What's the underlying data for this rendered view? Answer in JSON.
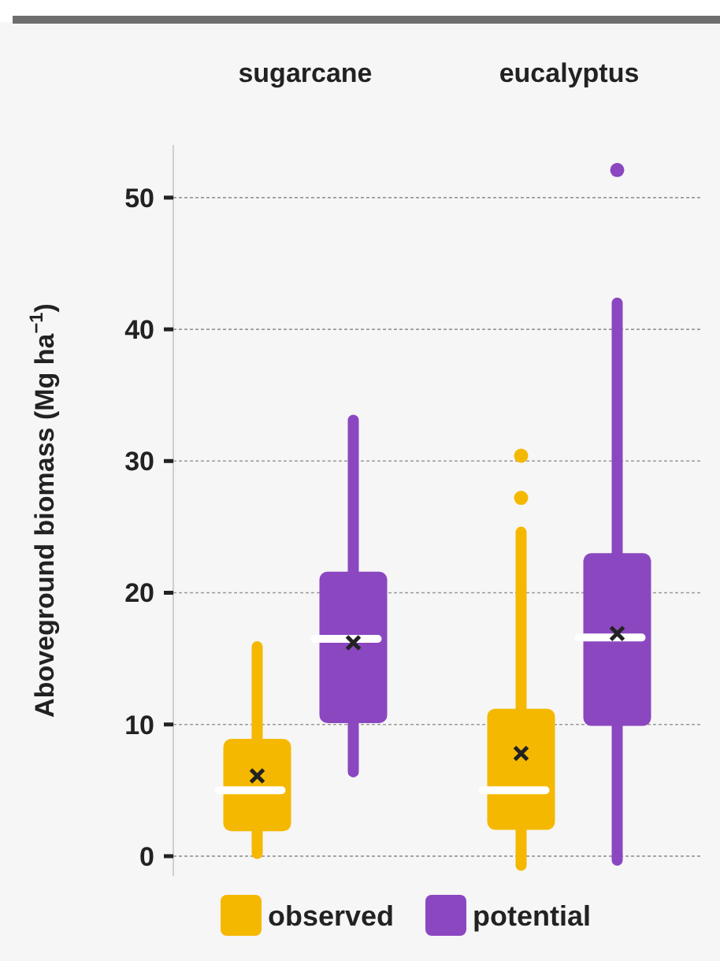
{
  "chart_data": {
    "type": "box",
    "categories": [
      "sugarcane",
      "eucalyptus"
    ],
    "ylabel": "Aboveground biomass (Mg ha$^{−1}$)",
    "ylim": [
      -1.5,
      54
    ],
    "yticks": [
      0,
      10,
      20,
      30,
      40,
      50
    ],
    "grid": "y",
    "legend": "bottom",
    "series": [
      {
        "name": "observed",
        "color": "#f5b800",
        "boxes": [
          {
            "low": 0.2,
            "q1": 1.9,
            "median": 5.0,
            "q3": 8.9,
            "high": 15.9,
            "mean": 6.1
          },
          {
            "low": -0.7,
            "q1": 2.0,
            "median": 5.0,
            "q3": 11.2,
            "high": 24.6,
            "mean": 7.8,
            "outliers": [
              27.2,
              30.4
            ]
          }
        ]
      },
      {
        "name": "potential",
        "color": "#8b47c0",
        "boxes": [
          {
            "low": 6.4,
            "q1": 10.1,
            "median": 16.5,
            "q3": 21.6,
            "high": 33.1,
            "mean": 16.2
          },
          {
            "low": -0.3,
            "q1": 9.9,
            "median": 16.6,
            "q3": 23.0,
            "high": 42.0,
            "mean": 16.9,
            "outliers": [
              52.1
            ]
          }
        ]
      }
    ]
  }
}
